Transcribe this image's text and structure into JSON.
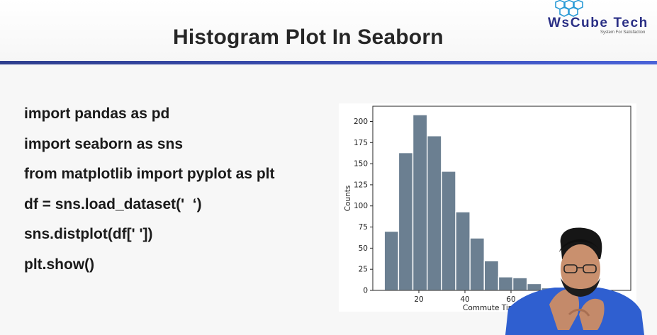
{
  "slide": {
    "title": "Histogram Plot In Seaborn"
  },
  "logo": {
    "name": "WsCube Tech",
    "brand_color": "#2a2f85",
    "tagline": "System For Satisfaction"
  },
  "code": {
    "lines": [
      "import pandas as pd",
      "import seaborn as sns",
      "from matplotlib import pyplot as plt",
      "df = sns.load_dataset('  ‘)",
      "sns.distplot(df[' '])",
      "plt.show()"
    ]
  },
  "chart_data": {
    "type": "bar",
    "title": "",
    "xlabel": "Commute Tim",
    "ylabel": "Counts",
    "bar_color": "#6b7f91",
    "bin_width": 6.2,
    "bin_start": 5,
    "values": [
      70,
      163,
      208,
      183,
      141,
      93,
      62,
      35,
      16,
      15,
      8,
      3,
      2
    ],
    "x_ticks": [
      20,
      40,
      60
    ],
    "y_ticks": [
      0,
      25,
      50,
      75,
      100,
      125,
      150,
      175,
      200
    ],
    "xlim": [
      0,
      112
    ],
    "ylim": [
      0,
      218
    ],
    "grid": false,
    "legend": "none"
  }
}
